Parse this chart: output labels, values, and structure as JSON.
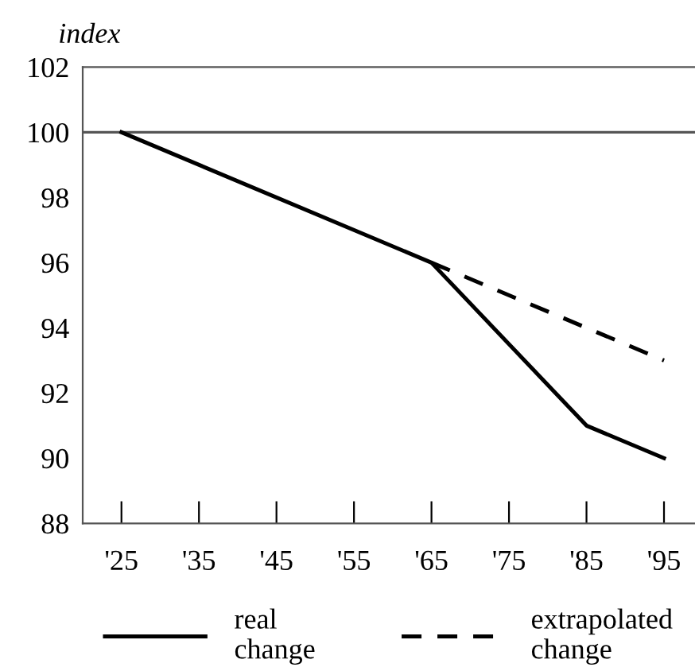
{
  "chart_data": {
    "type": "line",
    "ylabel": "index",
    "xlim": [
      1920,
      1999
    ],
    "xticks": [
      {
        "value": 1925,
        "label": "'25"
      },
      {
        "value": 1935,
        "label": "'35"
      },
      {
        "value": 1945,
        "label": "'45"
      },
      {
        "value": 1955,
        "label": "'55"
      },
      {
        "value": 1965,
        "label": "'65"
      },
      {
        "value": 1975,
        "label": "'75"
      },
      {
        "value": 1985,
        "label": "'85"
      },
      {
        "value": 1995,
        "label": "'95"
      }
    ],
    "ylim": [
      88,
      102
    ],
    "yticks": [
      88,
      90,
      92,
      94,
      96,
      98,
      100,
      102
    ],
    "series": [
      {
        "name": "real\nchange",
        "color": "#000000",
        "line_style": "solid",
        "x": [
          1925,
          1965,
          1985,
          1995
        ],
        "values": [
          100,
          96,
          91,
          90
        ]
      },
      {
        "name": "extrapolated\nchange",
        "color": "#000000",
        "line_style": "dashed",
        "x": [
          1965,
          1995
        ],
        "values": [
          96,
          93
        ]
      }
    ],
    "ref_lines": [
      {
        "axis": "y",
        "value": 100,
        "color": "#555555"
      }
    ],
    "grid": false,
    "legend": "bottom",
    "marker": "none"
  }
}
